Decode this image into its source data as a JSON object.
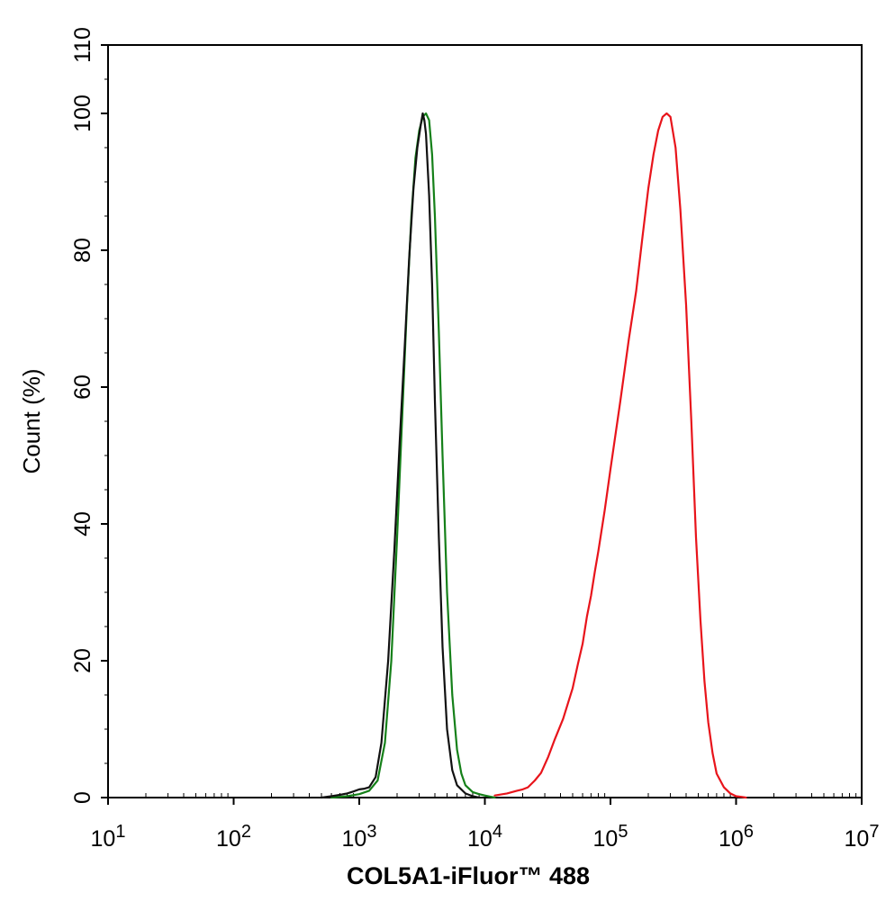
{
  "chart_data": {
    "type": "line",
    "title": "",
    "xlabel": "COL5A1-iFluor™ 488",
    "ylabel": "Count (%)",
    "x_scale": "log",
    "xlim": [
      10,
      10000000
    ],
    "ylim": [
      0,
      110
    ],
    "grid": false,
    "legend": "none",
    "x_ticks": [
      {
        "value": 10,
        "base": "10",
        "exp": "1"
      },
      {
        "value": 100,
        "base": "10",
        "exp": "2"
      },
      {
        "value": 1000,
        "base": "10",
        "exp": "3"
      },
      {
        "value": 10000,
        "base": "10",
        "exp": "4"
      },
      {
        "value": 100000,
        "base": "10",
        "exp": "5"
      },
      {
        "value": 1000000,
        "base": "10",
        "exp": "6"
      },
      {
        "value": 10000000,
        "base": "10",
        "exp": "7"
      }
    ],
    "y_ticks": [
      {
        "value": 0,
        "label": "0"
      },
      {
        "value": 20,
        "label": "20"
      },
      {
        "value": 40,
        "label": "40"
      },
      {
        "value": 60,
        "label": "60"
      },
      {
        "value": 80,
        "label": "80"
      },
      {
        "value": 100,
        "label": "100"
      },
      {
        "value": 110,
        "label": "110"
      }
    ],
    "series": [
      {
        "color": "#e8141b",
        "x": [
          12000,
          15000,
          18000,
          20000,
          22000,
          25000,
          28000,
          32000,
          36000,
          42000,
          50000,
          55000,
          60000,
          65000,
          70000,
          75000,
          80000,
          90000,
          100000,
          120000,
          140000,
          160000,
          180000,
          200000,
          220000,
          240000,
          260000,
          280000,
          300000,
          330000,
          360000,
          400000,
          440000,
          480000,
          520000,
          560000,
          600000,
          650000,
          700000,
          800000,
          900000,
          1000000,
          1100000,
          1200000
        ],
        "y": [
          0.3,
          0.6,
          1.0,
          1.2,
          1.5,
          2.5,
          3.6,
          6.0,
          8.5,
          11.5,
          16.0,
          19.5,
          22.5,
          26.5,
          29.5,
          33.0,
          36.0,
          42.0,
          48.0,
          58.0,
          67.0,
          74.0,
          82.0,
          89.0,
          94.0,
          97.5,
          99.5,
          100.0,
          99.5,
          95.0,
          86.0,
          72.0,
          55.0,
          38.0,
          26.0,
          17.0,
          11.0,
          6.5,
          3.5,
          1.5,
          0.6,
          0.2,
          0.1,
          0.0
        ]
      },
      {
        "color": "#158019",
        "x": [
          600,
          800,
          1000,
          1200,
          1400,
          1600,
          1800,
          2000,
          2200,
          2400,
          2600,
          2800,
          3000,
          3200,
          3400,
          3600,
          3800,
          4000,
          4300,
          4600,
          5000,
          5500,
          6000,
          6500,
          7000,
          8000,
          9000,
          10000,
          11000,
          12000
        ],
        "y": [
          0.0,
          0.2,
          0.5,
          1.0,
          2.5,
          8.0,
          20.0,
          38.0,
          56.0,
          72.0,
          85.0,
          93.5,
          97.5,
          99.5,
          100.0,
          99.0,
          94.0,
          85.0,
          68.0,
          50.0,
          30.0,
          15.0,
          7.0,
          3.5,
          1.8,
          0.8,
          0.5,
          0.3,
          0.15,
          0.0
        ]
      },
      {
        "color": "#111111",
        "x": [
          500,
          600,
          700,
          800,
          900,
          1000,
          1100,
          1200,
          1350,
          1500,
          1700,
          1900,
          2100,
          2300,
          2500,
          2700,
          2900,
          3100,
          3200,
          3300,
          3400,
          3600,
          3800,
          4000,
          4300,
          4600,
          5000,
          5500,
          6000,
          7000,
          8000,
          9000
        ],
        "y": [
          0.0,
          0.2,
          0.4,
          0.6,
          0.9,
          1.2,
          1.3,
          1.5,
          3.0,
          8.0,
          20.0,
          36.0,
          52.0,
          66.0,
          79.0,
          89.0,
          95.0,
          98.5,
          100.0,
          99.0,
          97.0,
          88.0,
          75.0,
          58.0,
          38.0,
          22.0,
          10.0,
          4.0,
          1.8,
          0.6,
          0.2,
          0.0
        ]
      }
    ]
  }
}
